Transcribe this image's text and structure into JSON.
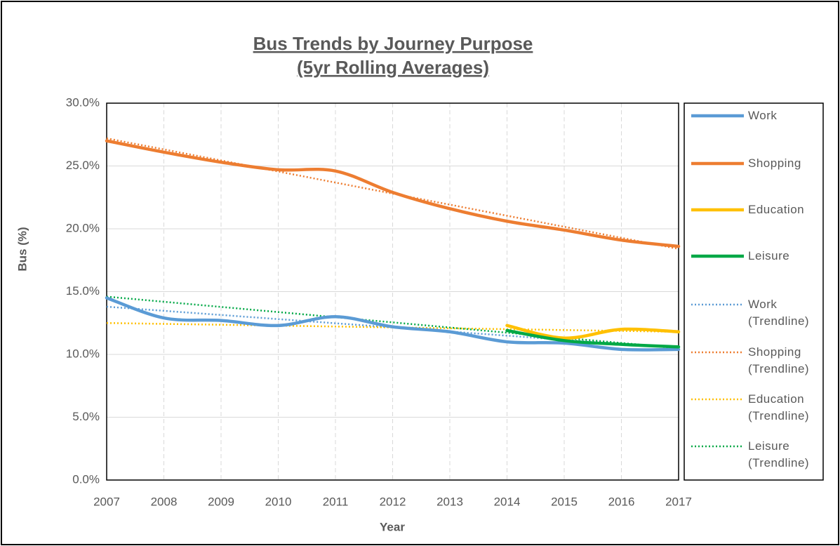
{
  "chart_data": {
    "type": "line",
    "title": "Bus Trends by Journey Purpose",
    "subtitle": "(5yr Rolling Averages)",
    "x_label": "Year",
    "y_label": "Bus (%)",
    "x": [
      2007,
      2008,
      2009,
      2010,
      2011,
      2012,
      2013,
      2014,
      2015,
      2016,
      2017
    ],
    "xlim": [
      2007,
      2017
    ],
    "xticks": [
      2007,
      2008,
      2009,
      2010,
      2011,
      2012,
      2013,
      2014,
      2015,
      2016,
      2017
    ],
    "ylim": [
      0,
      30
    ],
    "yticks": [
      {
        "value": 0,
        "label": "0.0%"
      },
      {
        "value": 5,
        "label": "5.0%"
      },
      {
        "value": 10,
        "label": "10.0%"
      },
      {
        "value": 15,
        "label": "15.0%"
      },
      {
        "value": 20,
        "label": "20.0%"
      },
      {
        "value": 25,
        "label": "25.0%"
      },
      {
        "value": 30,
        "label": "30.0%"
      }
    ],
    "grid": true,
    "legend": "right",
    "series": [
      {
        "name": "Work",
        "color": "#5b9bd5",
        "style": "solid",
        "values": [
          14.5,
          12.9,
          12.7,
          12.3,
          13.0,
          12.2,
          11.8,
          11.0,
          10.9,
          10.4,
          10.4
        ]
      },
      {
        "name": "Shopping",
        "color": "#ed7d31",
        "style": "solid",
        "values": [
          27.0,
          26.1,
          25.3,
          24.7,
          24.6,
          22.9,
          21.6,
          20.6,
          19.9,
          19.1,
          18.6
        ]
      },
      {
        "name": "Education",
        "color": "#ffc000",
        "style": "solid",
        "values": [
          null,
          null,
          null,
          null,
          null,
          null,
          null,
          12.3,
          11.3,
          12.0,
          11.8
        ]
      },
      {
        "name": "Leisure",
        "color": "#00a846",
        "style": "solid",
        "values": [
          null,
          null,
          null,
          null,
          null,
          null,
          null,
          11.9,
          11.1,
          10.8,
          10.6
        ]
      },
      {
        "name": "Work (Trendline)",
        "color": "#5b9bd5",
        "style": "dotted",
        "values": [
          13.8,
          13.47,
          13.14,
          12.81,
          12.48,
          12.15,
          11.82,
          11.49,
          11.16,
          10.83,
          10.5
        ]
      },
      {
        "name": "Shopping (Trendline)",
        "color": "#ed7d31",
        "style": "dotted",
        "values": [
          27.2,
          26.32,
          25.44,
          24.56,
          23.68,
          22.8,
          21.92,
          21.04,
          20.16,
          19.28,
          18.4
        ]
      },
      {
        "name": "Education (Trendline)",
        "color": "#ffc000",
        "style": "dotted",
        "values": [
          12.5,
          12.43,
          12.36,
          12.29,
          12.22,
          12.15,
          12.08,
          12.01,
          11.94,
          11.87,
          11.8
        ]
      },
      {
        "name": "Leisure (Trendline)",
        "color": "#00a846",
        "style": "dotted",
        "values": [
          14.6,
          14.19,
          13.78,
          13.37,
          12.96,
          12.55,
          12.14,
          11.73,
          11.32,
          10.91,
          10.5
        ]
      }
    ]
  }
}
